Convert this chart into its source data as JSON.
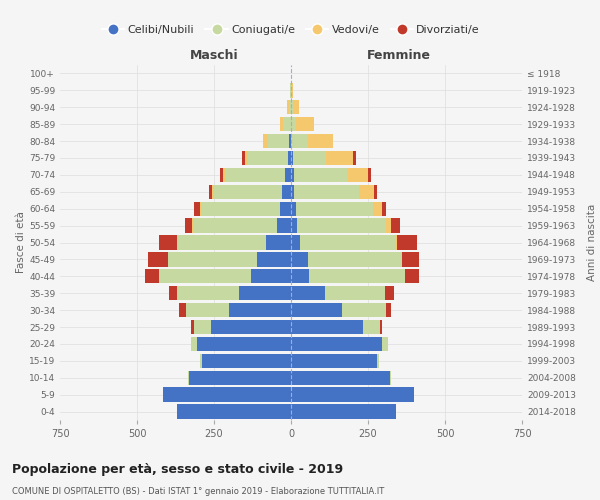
{
  "age_groups": [
    "0-4",
    "5-9",
    "10-14",
    "15-19",
    "20-24",
    "25-29",
    "30-34",
    "35-39",
    "40-44",
    "45-49",
    "50-54",
    "55-59",
    "60-64",
    "65-69",
    "70-74",
    "75-79",
    "80-84",
    "85-89",
    "90-94",
    "95-99",
    "100+"
  ],
  "birth_years": [
    "2014-2018",
    "2009-2013",
    "2004-2008",
    "1999-2003",
    "1994-1998",
    "1989-1993",
    "1984-1988",
    "1979-1983",
    "1974-1978",
    "1969-1973",
    "1964-1968",
    "1959-1963",
    "1954-1958",
    "1949-1953",
    "1944-1948",
    "1939-1943",
    "1934-1938",
    "1929-1933",
    "1924-1928",
    "1919-1923",
    "≤ 1918"
  ],
  "males": {
    "celibi": [
      370,
      415,
      330,
      290,
      305,
      260,
      200,
      170,
      130,
      110,
      80,
      45,
      35,
      30,
      20,
      10,
      5,
      0,
      0,
      0,
      0
    ],
    "coniugati": [
      0,
      0,
      5,
      5,
      20,
      55,
      140,
      200,
      300,
      290,
      290,
      270,
      255,
      220,
      190,
      130,
      70,
      25,
      8,
      2,
      0
    ],
    "vedovi": [
      0,
      0,
      0,
      0,
      0,
      0,
      0,
      0,
      0,
      0,
      0,
      5,
      5,
      5,
      10,
      10,
      15,
      10,
      5,
      0,
      0
    ],
    "divorziati": [
      0,
      0,
      0,
      0,
      0,
      10,
      25,
      25,
      45,
      65,
      60,
      25,
      20,
      10,
      10,
      10,
      0,
      0,
      0,
      0,
      0
    ]
  },
  "females": {
    "nubili": [
      340,
      400,
      320,
      280,
      295,
      235,
      165,
      110,
      60,
      55,
      30,
      20,
      15,
      10,
      10,
      5,
      0,
      0,
      0,
      0,
      0
    ],
    "coniugate": [
      0,
      0,
      5,
      5,
      20,
      55,
      145,
      195,
      310,
      305,
      310,
      290,
      250,
      210,
      175,
      110,
      55,
      15,
      5,
      2,
      0
    ],
    "vedove": [
      0,
      0,
      0,
      0,
      0,
      0,
      0,
      0,
      0,
      0,
      5,
      15,
      30,
      50,
      65,
      85,
      80,
      60,
      20,
      3,
      0
    ],
    "divorziate": [
      0,
      0,
      0,
      0,
      0,
      5,
      15,
      30,
      45,
      55,
      65,
      30,
      15,
      10,
      10,
      10,
      0,
      0,
      0,
      0,
      0
    ]
  },
  "colors": {
    "celibi": "#4472c4",
    "coniugati": "#c5d9a0",
    "vedovi": "#f5c86e",
    "divorziati": "#c0392b"
  },
  "title": "Popolazione per età, sesso e stato civile - 2019",
  "subtitle": "COMUNE DI OSPITALETTO (BS) - Dati ISTAT 1° gennaio 2019 - Elaborazione TUTTITALIA.IT",
  "xlabel_left": "Maschi",
  "xlabel_right": "Femmine",
  "ylabel_left": "Fasce di età",
  "ylabel_right": "Anni di nascita",
  "xlim": 750,
  "legend_labels": [
    "Celibi/Nubili",
    "Coniugati/e",
    "Vedovi/e",
    "Divorziati/e"
  ],
  "bg_color": "#f5f5f5"
}
